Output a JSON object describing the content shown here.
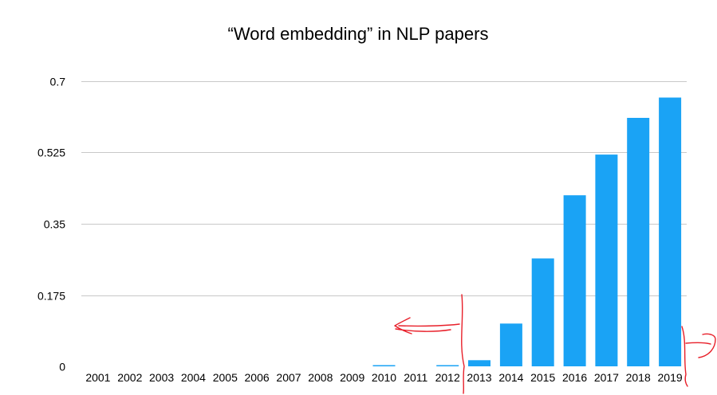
{
  "chart_data": {
    "type": "bar",
    "title": "“Word embedding” in NLP papers",
    "xlabel": "",
    "ylabel": "",
    "categories": [
      "2001",
      "2002",
      "2003",
      "2004",
      "2005",
      "2006",
      "2007",
      "2008",
      "2009",
      "2010",
      "2011",
      "2012",
      "2013",
      "2014",
      "2015",
      "2016",
      "2017",
      "2018",
      "2019"
    ],
    "values": [
      0,
      0,
      0,
      0,
      0,
      0,
      0,
      0,
      0,
      0.003,
      0,
      0.003,
      0.015,
      0.105,
      0.265,
      0.42,
      0.52,
      0.61,
      0.66
    ],
    "y_ticks": [
      "0",
      "0.175",
      "0.35",
      "0.525",
      "0.7"
    ],
    "y_tick_values": [
      0,
      0.175,
      0.35,
      0.525,
      0.7
    ],
    "ylim": [
      0,
      0.7
    ],
    "grid": true,
    "legend": "none",
    "bar_color": "#1aa3f5",
    "gridline_color": "#c8c8c8",
    "annotation_color": "#e8202a"
  }
}
